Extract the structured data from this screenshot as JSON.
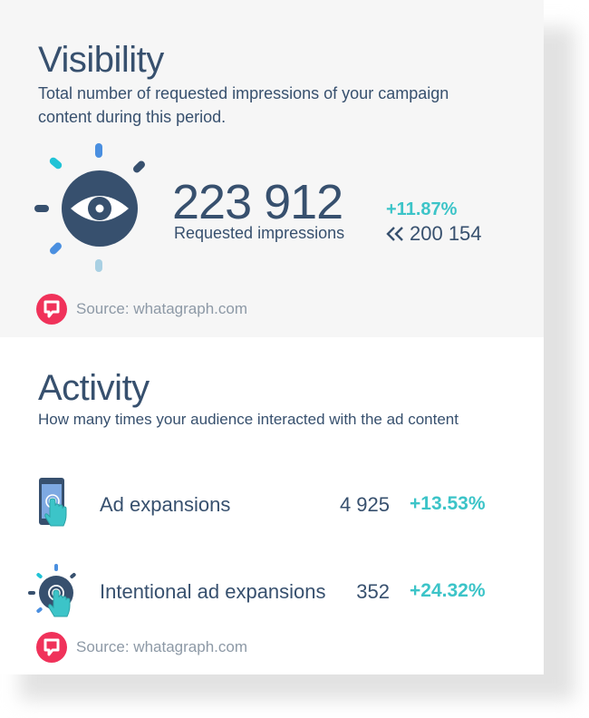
{
  "visibility": {
    "title": "Visibility",
    "description_line1": "Total number of requested impressions of your campaign",
    "description_line2": "content during this period.",
    "value": "223 912",
    "value_label": "Requested impressions",
    "change": "+11.87%",
    "previous": "200 154",
    "icons": {
      "main": "eye-icon",
      "previous": "double-chevron-left-icon"
    }
  },
  "activity": {
    "title": "Activity",
    "description": "How many times your audience interacted with the ad content",
    "rows": [
      {
        "icon": "phone-tap-icon",
        "label": "Ad expansions",
        "value": "4 925",
        "change": "+13.53%"
      },
      {
        "icon": "target-tap-icon",
        "label": "Intentional ad expansions",
        "value": "352",
        "change": "+24.32%"
      }
    ]
  },
  "source": {
    "text": "Source: whatagraph.com",
    "icon": "whatagraph-logo-icon"
  },
  "colors": {
    "primary": "#37506e",
    "accent": "#3cc4c8",
    "logo": "#f0325a",
    "muted": "#8d99a6"
  }
}
